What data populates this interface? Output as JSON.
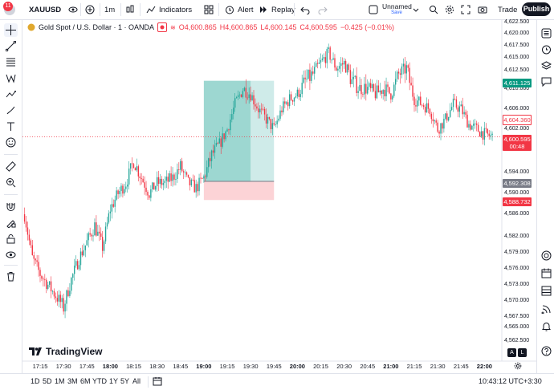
{
  "app": {
    "notifications": "11"
  },
  "toolbar": {
    "symbol": "XAUUSD",
    "interval": "1m",
    "indicators_label": "Indicators",
    "alert_label": "Alert",
    "replay_label": "Replay",
    "layout_name": "Unnamed",
    "layout_status": "Save",
    "trade_label": "Trade",
    "publish_label": "Publish"
  },
  "legend": {
    "title": "Gold Spot / U.S. Dollar · 1 · OANDA",
    "open": "O4,600.865",
    "high": "H4,600.865",
    "low": "L4,600.145",
    "close": "C4,600.595",
    "change": "−0.425 (−0.01%)"
  },
  "axis": {
    "y_ticks": [
      "4,622.500",
      "4,620.000",
      "4,617.500",
      "4,615.000",
      "4,612.500",
      "4,610.000",
      "4,606.000",
      "4,602.000",
      "4,598.000",
      "4,594.000",
      "4,590.000",
      "4,586.000",
      "4,582.000",
      "4,579.000",
      "4,576.000",
      "4,573.000",
      "4,570.000",
      "4,567.500",
      "4,565.000",
      "4,562.500"
    ],
    "x_ticks": [
      "17:15",
      "17:30",
      "17:45",
      "18:00",
      "18:15",
      "18:30",
      "18:45",
      "19:00",
      "19:15",
      "19:30",
      "19:45",
      "20:00",
      "20:15",
      "20:30",
      "20:45",
      "21:00",
      "21:15",
      "21:30",
      "21:45",
      "22:00"
    ],
    "bold_x_ticks": [
      "18:00",
      "19:00",
      "20:00",
      "21:00",
      "22:00"
    ]
  },
  "price_labels": {
    "target": "4,611.125",
    "high_ref": "4,604.360",
    "current": "4,600.595",
    "countdown": "00:48",
    "entry": "4,592.308",
    "stop": "4,588.732"
  },
  "branding": {
    "logo_text": "TradingView"
  },
  "bottom": {
    "ranges": [
      "1D",
      "5D",
      "1M",
      "3M",
      "6M",
      "YTD",
      "1Y",
      "5Y",
      "All"
    ],
    "clock": "10:43:12 UTC+3:30",
    "scale_a": "A",
    "scale_l": "L"
  },
  "colors": {
    "up": "#26a69a",
    "down": "#f23645",
    "accent": "#2962ff"
  },
  "chart_data": {
    "type": "candlestick",
    "y_range": [
      4562.5,
      4622.5
    ],
    "x_range": [
      "17:05",
      "22:10"
    ],
    "position": {
      "type": "long",
      "entry": 4592.308,
      "target": 4611.125,
      "stop": 4588.732,
      "start": "19:00",
      "end": "19:45"
    },
    "close_path": [
      [
        "17:05",
        4586.0
      ],
      [
        "17:10",
        4578.0
      ],
      [
        "17:15",
        4575.0
      ],
      [
        "17:20",
        4573.0
      ],
      [
        "17:25",
        4571.0
      ],
      [
        "17:30",
        4569.0
      ],
      [
        "17:35",
        4574.0
      ],
      [
        "17:40",
        4578.0
      ],
      [
        "17:45",
        4581.0
      ],
      [
        "17:50",
        4584.0
      ],
      [
        "17:55",
        4580.0
      ],
      [
        "18:00",
        4587.0
      ],
      [
        "18:05",
        4590.0
      ],
      [
        "18:10",
        4592.0
      ],
      [
        "18:15",
        4596.0
      ],
      [
        "18:20",
        4593.0
      ],
      [
        "18:25",
        4590.0
      ],
      [
        "18:30",
        4592.0
      ],
      [
        "18:35",
        4592.0
      ],
      [
        "18:40",
        4593.0
      ],
      [
        "18:45",
        4595.0
      ],
      [
        "18:50",
        4592.0
      ],
      [
        "18:55",
        4591.0
      ],
      [
        "19:00",
        4593.0
      ],
      [
        "19:05",
        4597.0
      ],
      [
        "19:10",
        4599.0
      ],
      [
        "19:15",
        4602.0
      ],
      [
        "19:20",
        4607.0
      ],
      [
        "19:25",
        4610.0
      ],
      [
        "19:30",
        4609.0
      ],
      [
        "19:35",
        4606.0
      ],
      [
        "19:40",
        4604.0
      ],
      [
        "19:45",
        4602.0
      ],
      [
        "19:50",
        4606.0
      ],
      [
        "19:55",
        4608.0
      ],
      [
        "20:00",
        4609.0
      ],
      [
        "20:05",
        4611.0
      ],
      [
        "20:10",
        4612.0
      ],
      [
        "20:15",
        4614.0
      ],
      [
        "20:20",
        4616.0
      ],
      [
        "20:25",
        4613.0
      ],
      [
        "20:30",
        4614.0
      ],
      [
        "20:35",
        4611.0
      ],
      [
        "20:40",
        4610.0
      ],
      [
        "20:45",
        4610.0
      ],
      [
        "20:50",
        4609.0
      ],
      [
        "20:55",
        4610.0
      ],
      [
        "21:00",
        4609.0
      ],
      [
        "21:05",
        4612.0
      ],
      [
        "21:10",
        4613.0
      ],
      [
        "21:15",
        4608.0
      ],
      [
        "21:20",
        4607.0
      ],
      [
        "21:25",
        4606.0
      ],
      [
        "21:30",
        4602.0
      ],
      [
        "21:35",
        4604.0
      ],
      [
        "21:40",
        4607.0
      ],
      [
        "21:45",
        4606.0
      ],
      [
        "21:50",
        4603.0
      ],
      [
        "21:55",
        4602.0
      ],
      [
        "22:00",
        4601.0
      ],
      [
        "22:05",
        4600.5
      ]
    ]
  }
}
